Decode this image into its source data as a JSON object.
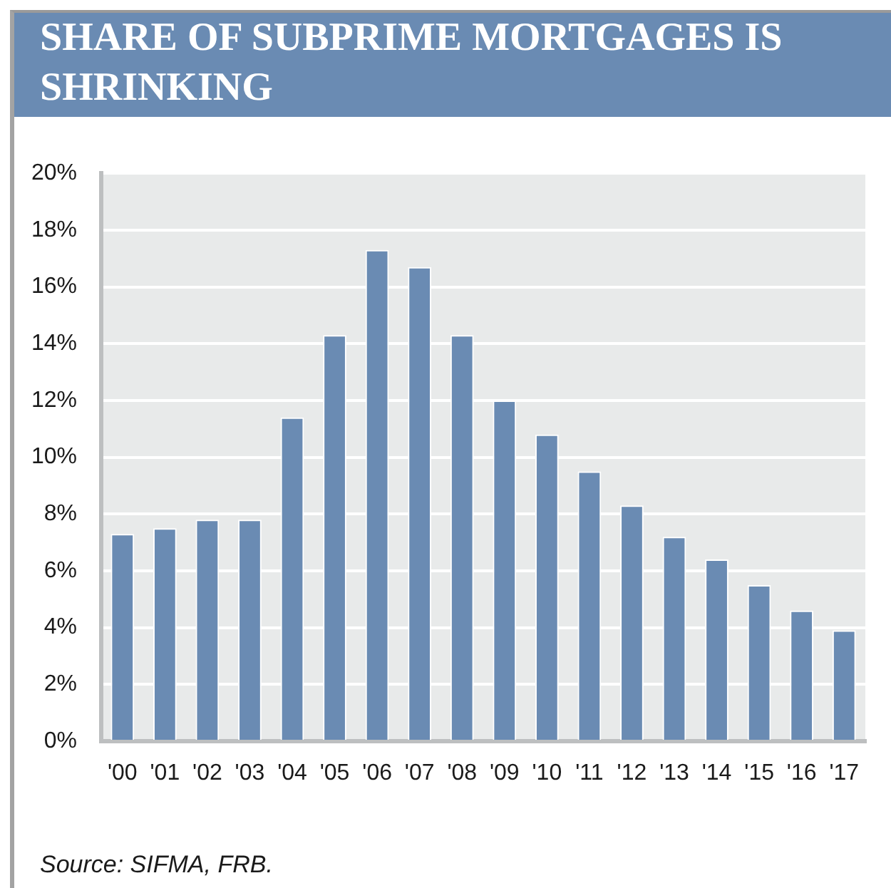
{
  "chart_data": {
    "type": "bar",
    "title": "SHARE OF SUBPRIME MORTGAGES IS SHRINKING",
    "categories": [
      "'00",
      "'01",
      "'02",
      "'03",
      "'04",
      "'05",
      "'06",
      "'07",
      "'08",
      "'09",
      "'10",
      "'11",
      "'12",
      "'13",
      "'14",
      "'15",
      "'16",
      "'17"
    ],
    "values": [
      7.3,
      7.5,
      7.8,
      7.8,
      11.4,
      14.3,
      17.3,
      16.7,
      14.3,
      12.0,
      10.8,
      9.5,
      8.3,
      7.2,
      6.4,
      5.5,
      4.6,
      3.9
    ],
    "color": "#6a8bb3",
    "ylim": [
      0,
      20
    ],
    "yticks": [
      {
        "value": 0,
        "label": "0%"
      },
      {
        "value": 2,
        "label": "2%"
      },
      {
        "value": 4,
        "label": "4%"
      },
      {
        "value": 6,
        "label": "6%"
      },
      {
        "value": 8,
        "label": "8%"
      },
      {
        "value": 10,
        "label": "10%"
      },
      {
        "value": 12,
        "label": "12%"
      },
      {
        "value": 14,
        "label": "14%"
      },
      {
        "value": 16,
        "label": "16%"
      },
      {
        "value": 18,
        "label": "18%"
      },
      {
        "value": 20,
        "label": "20%"
      }
    ],
    "grid": "y",
    "annotations": [
      "Source: SIFMA, FRB."
    ]
  }
}
